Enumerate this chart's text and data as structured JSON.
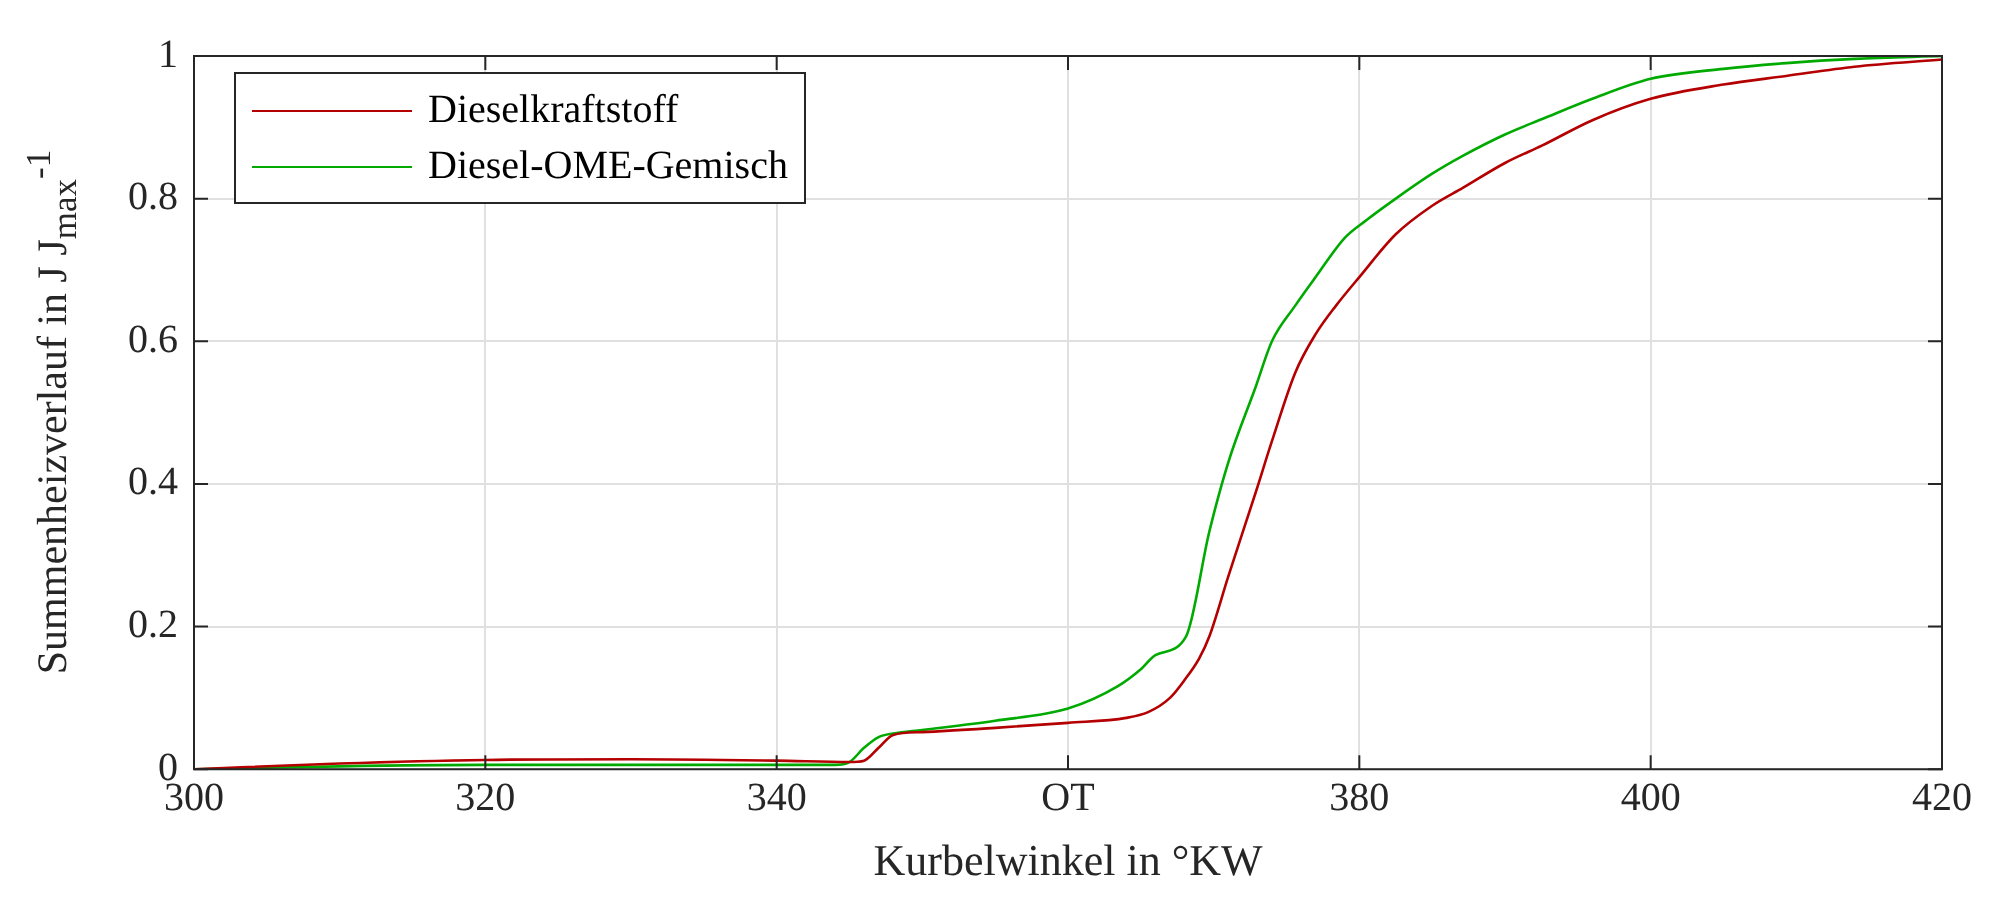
{
  "chart_data": {
    "type": "line",
    "xlabel": "Kurbelwinkel in °KW",
    "ylabel": "Summenheizverlauf in J J$_{max}$$^{-1}$",
    "xlim": [
      300,
      420
    ],
    "xticks": [
      300,
      320,
      340,
      {
        "value": 360,
        "label": "OT"
      },
      380,
      400,
      420
    ],
    "ylim": [
      0,
      1
    ],
    "yticks": [
      0,
      0.2,
      0.4,
      0.6,
      0.8,
      1
    ],
    "grid": true,
    "legend": "top left",
    "marker": "none",
    "line_style": "solid",
    "series": [
      {
        "name": "Dieselkraftstoff",
        "color": "#b40000",
        "x": [
          300,
          310,
          320,
          330,
          340,
          345,
          346,
          347,
          348,
          350,
          355,
          360,
          364,
          365.5,
          367,
          368,
          369,
          369.7,
          371,
          372.9,
          374,
          375.6,
          377,
          378.4,
          380,
          382.5,
          385,
          387.1,
          390,
          392.6,
          396,
          400,
          405,
          409.3,
          414,
          420
        ],
        "values": [
          0,
          0.008,
          0.013,
          0.014,
          0.012,
          0.01,
          0.012,
          0.03,
          0.048,
          0.052,
          0.058,
          0.065,
          0.072,
          0.08,
          0.1,
          0.125,
          0.155,
          0.186,
          0.27,
          0.389,
          0.46,
          0.556,
          0.61,
          0.65,
          0.69,
          0.75,
          0.79,
          0.815,
          0.85,
          0.875,
          0.91,
          0.94,
          0.96,
          0.972,
          0.985,
          0.995
        ]
      },
      {
        "name": "Diesel-OME-Gemisch",
        "color": "#00aa00",
        "x": [
          300,
          310,
          320,
          330,
          340,
          344,
          345,
          346,
          347,
          348,
          350,
          355,
          360,
          363.4,
          365,
          366,
          368.1,
          369.7,
          371,
          372.9,
          374,
          375.6,
          377,
          379,
          380.5,
          382.5,
          385,
          387.1,
          390,
          392.6,
          396,
          400,
          405,
          409.3,
          414,
          420
        ],
        "values": [
          0,
          0.004,
          0.006,
          0.006,
          0.006,
          0.006,
          0.01,
          0.03,
          0.045,
          0.05,
          0.055,
          0.068,
          0.085,
          0.116,
          0.14,
          0.16,
          0.186,
          0.333,
          0.43,
          0.537,
          0.6,
          0.65,
          0.69,
          0.745,
          0.77,
          0.8,
          0.835,
          0.86,
          0.89,
          0.912,
          0.94,
          0.968,
          0.982,
          0.99,
          0.996,
          1
        ]
      }
    ]
  }
}
